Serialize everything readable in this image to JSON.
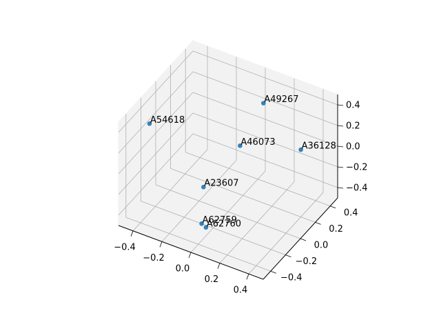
{
  "chart_data": {
    "type": "scatter3d",
    "series": [
      {
        "color": "#1f77b4",
        "labels": [
          "A62759",
          "A62760",
          "A23607",
          "A46073",
          "A36128",
          "A49267",
          "A54618"
        ],
        "x": [
          -0.08,
          -0.04,
          -0.17,
          -0.02,
          0.4,
          0.09,
          -0.44
        ],
        "y": [
          -0.2,
          -0.22,
          0,
          0.2,
          0.2,
          0.3,
          -0.2
        ],
        "z": [
          -0.5,
          -0.5,
          -0.35,
          -0.03,
          0.15,
          0.36,
          0.28
        ]
      }
    ],
    "xlim": [
      -0.5,
      0.5
    ],
    "ylim": [
      -0.5,
      0.5
    ],
    "zlim": [
      -0.5,
      0.5
    ],
    "xticks": [
      {
        "value": -0.4,
        "label": "−0.4"
      },
      {
        "value": -0.2,
        "label": "−0.2"
      },
      {
        "value": 0,
        "label": "0.0"
      },
      0.2,
      0.4
    ],
    "yticks": [
      {
        "value": -0.4,
        "label": "−0.4"
      },
      {
        "value": -0.2,
        "label": "−0.2"
      },
      {
        "value": 0,
        "label": "0.0"
      },
      0.2,
      0.4
    ],
    "zticks": [
      {
        "value": -0.4,
        "label": "−0.4"
      },
      {
        "value": -0.2,
        "label": "−0.2"
      },
      {
        "value": 0,
        "label": "0.0"
      },
      0.2,
      0.4
    ],
    "grid": true
  }
}
